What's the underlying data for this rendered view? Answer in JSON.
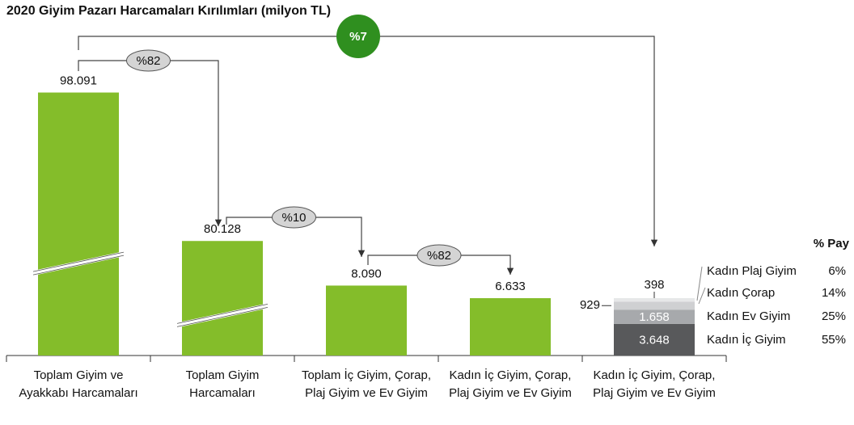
{
  "chart_data": {
    "type": "bar",
    "title": "2020 Giyim Pazarı Harcamaları Kırılımları (milyon TL)",
    "categories": [
      "Toplam Giyim ve Ayakkabı Harcamaları",
      "Toplam Giyim Harcamaları",
      "Toplam İç Giyim, Çorap, Plaj Giyim ve Ev Giyim",
      "Kadın İç Giyim, Çorap, Plaj Giyim ve Ev Giyim",
      "Kadın İç Giyim, Çorap, Plaj Giyim ve Ev Giyim"
    ],
    "values": [
      98091,
      80128,
      8090,
      6633,
      null
    ],
    "value_labels": [
      "98.091",
      "80.128",
      "8.090",
      "6.633",
      null
    ],
    "color": "#84bd2a",
    "annotations": [
      "%82",
      "%10",
      "%82",
      "%7"
    ],
    "stack": {
      "share_header": "% Pay",
      "series": [
        {
          "name": "Kadın İç Giyim",
          "color": "#58595b",
          "value": 3648,
          "value_label": "3.648",
          "share": 55,
          "share_label": "55%"
        },
        {
          "name": "Kadın Ev Giyim",
          "color": "#a7a9ac",
          "value": 1658,
          "value_label": "1.658",
          "share": 25,
          "share_label": "25%"
        },
        {
          "name": "Kadın Çorap",
          "color": "#cfd0d2",
          "value": 929,
          "value_label": "929",
          "share": 14,
          "share_label": "14%"
        },
        {
          "name": "Kadın Plaj Giyim",
          "color": "#e6e7e8",
          "value": 398,
          "value_label": "398",
          "share": 6,
          "share_label": "6%"
        }
      ]
    }
  }
}
